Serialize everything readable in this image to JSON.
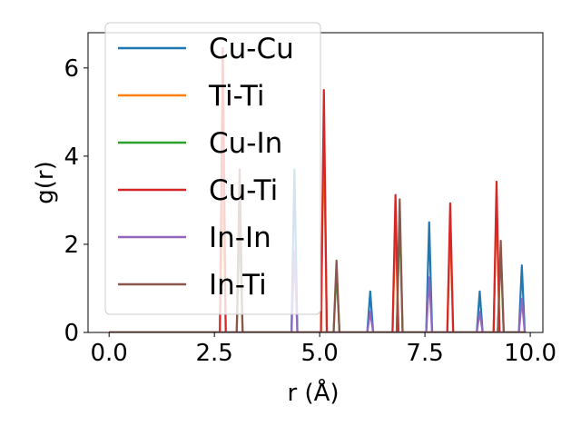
{
  "chart_data": {
    "type": "line",
    "title": "",
    "xlabel": "r (Å)",
    "ylabel": "g(r)",
    "xlim": [
      -0.5,
      10.3
    ],
    "ylim": [
      0,
      6.8
    ],
    "xticks": [
      0,
      2.5,
      5,
      7.5,
      10
    ],
    "xtick_labels": [
      "0.0",
      "2.5",
      "5.0",
      "7.5",
      "10.0"
    ],
    "yticks": [
      0,
      2,
      4,
      6
    ],
    "ytick_labels": [
      "0",
      "2",
      "4",
      "6"
    ],
    "grid": false,
    "legend_position": "upper-left",
    "peak_half_width": 0.07,
    "r_max": 9.9,
    "series": [
      {
        "name": "Cu-Cu",
        "color": "#1f77b4",
        "peaks": [
          [
            4.4,
            3.7
          ],
          [
            6.2,
            0.93
          ],
          [
            7.6,
            2.5
          ],
          [
            8.8,
            0.93
          ],
          [
            9.8,
            1.52
          ]
        ]
      },
      {
        "name": "Ti-Ti",
        "color": "#ff7f0e",
        "peaks": [
          [
            2.7,
            3.8
          ],
          [
            5.1,
            4.6
          ],
          [
            6.8,
            2.6
          ],
          [
            8.1,
            2.5
          ],
          [
            9.2,
            3.0
          ]
        ]
      },
      {
        "name": "Cu-In",
        "color": "#2ca02c",
        "peaks": [
          [
            3.1,
            2.5
          ],
          [
            5.4,
            1.4
          ],
          [
            6.9,
            2.7
          ],
          [
            9.3,
            1.9
          ]
        ]
      },
      {
        "name": "Cu-Ti",
        "color": "#d62728",
        "peaks": [
          [
            2.7,
            6.45
          ],
          [
            5.1,
            5.5
          ],
          [
            6.8,
            3.12
          ],
          [
            8.1,
            2.93
          ],
          [
            9.2,
            3.42
          ]
        ]
      },
      {
        "name": "In-In",
        "color": "#9467bd",
        "peaks": [
          [
            4.4,
            1.85
          ],
          [
            6.2,
            0.47
          ],
          [
            7.6,
            1.25
          ],
          [
            8.8,
            0.47
          ],
          [
            9.8,
            0.76
          ]
        ]
      },
      {
        "name": "In-Ti",
        "color": "#8c564b",
        "peaks": [
          [
            3.1,
            3.7
          ],
          [
            5.4,
            1.63
          ],
          [
            6.9,
            3.02
          ],
          [
            9.3,
            2.08
          ]
        ]
      }
    ]
  }
}
